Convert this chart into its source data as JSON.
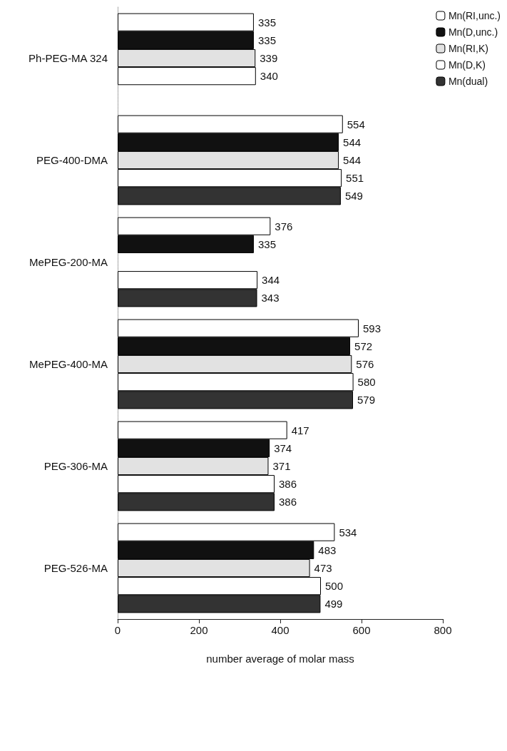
{
  "chart_data": {
    "type": "bar",
    "orientation": "horizontal",
    "xlabel": "number average of molar mass",
    "categories": [
      "Ph-PEG-MA 324",
      "PEG-400-DMA",
      "MePEG-200-MA",
      "MePEG-400-MA",
      "PEG-306-MA",
      "PEG-526-MA"
    ],
    "series": [
      {
        "name": "Mn(RI,unc.)",
        "color": "#ffffff",
        "values": [
          335,
          554,
          376,
          593,
          417,
          534
        ]
      },
      {
        "name": "Mn(D,unc.)",
        "color": "#111111",
        "values": [
          335,
          544,
          335,
          572,
          374,
          483
        ]
      },
      {
        "name": "Mn(RI,K)",
        "color": "#e2e2e2",
        "values": [
          339,
          544,
          null,
          576,
          371,
          473
        ]
      },
      {
        "name": "Mn(D,K)",
        "color": "#ffffff",
        "values": [
          340,
          551,
          344,
          580,
          386,
          500
        ]
      },
      {
        "name": "Mn(dual)",
        "color": "#333333",
        "values": [
          null,
          549,
          343,
          579,
          386,
          499
        ]
      }
    ],
    "xlim": [
      0,
      800
    ],
    "xticks": [
      0,
      200,
      400,
      600,
      800
    ],
    "grid": false,
    "legend": "top right",
    "data_labels": true
  }
}
